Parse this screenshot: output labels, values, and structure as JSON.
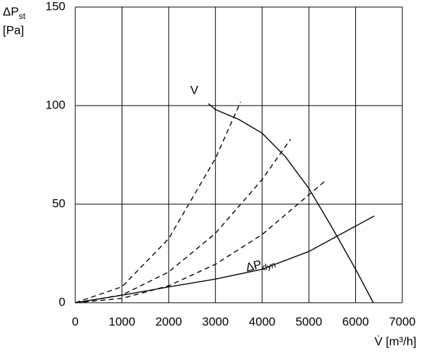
{
  "chart_data": {
    "type": "line",
    "ylabel": {
      "text": "ΔP",
      "sub": "st",
      "unit": "[Pa]"
    },
    "xlabel": "V̇ [m³/h]",
    "xlim": [
      0,
      7000
    ],
    "xticks": [
      0,
      1000,
      2000,
      3000,
      4000,
      5000,
      6000,
      7000
    ],
    "ylim": [
      0,
      150
    ],
    "yticks": [
      0,
      50,
      100,
      150
    ],
    "grid": true,
    "series": [
      {
        "name": "V",
        "color": "#000000",
        "x": [
          2850,
          3000,
          3500,
          4000,
          4500,
          5000,
          5500,
          6000,
          6380
        ],
        "values": [
          101,
          98,
          93,
          86,
          74,
          58,
          38,
          17,
          0
        ]
      },
      {
        "color": "#000000",
        "dash": true,
        "x": [
          0,
          1000,
          2000,
          3000,
          3537
        ],
        "values": [
          0,
          8.1,
          32.5,
          73.2,
          101.8
        ]
      },
      {
        "color": "#000000",
        "dash": true,
        "x": [
          0,
          1000,
          2000,
          3000,
          4000,
          4606
        ],
        "values": [
          0,
          3.9,
          15.6,
          35.2,
          62.5,
          82.9
        ]
      },
      {
        "color": "#000000",
        "dash": true,
        "x": [
          0,
          1000,
          2000,
          3000,
          4000,
          5329
        ],
        "values": [
          0,
          2.2,
          8.6,
          19.5,
          34.6,
          61.4
        ]
      },
      {
        "name": "ΔP",
        "name_sub": "dyn",
        "color": "#000000",
        "x": [
          0,
          1000,
          2000,
          3000,
          4000,
          5000,
          6400
        ],
        "values": [
          0,
          3.8,
          8,
          12,
          17,
          26,
          44
        ]
      }
    ]
  }
}
